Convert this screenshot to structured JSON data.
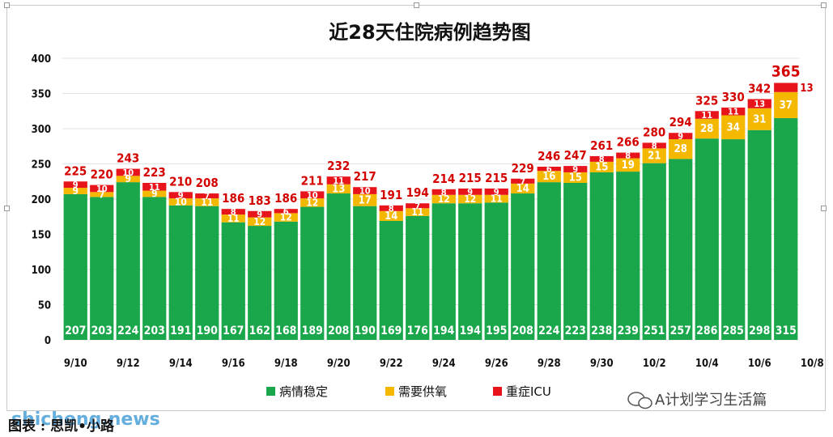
{
  "chart_data": {
    "type": "bar",
    "stacked": true,
    "title": "近28天住院病例趋势图",
    "ylim": [
      0,
      400
    ],
    "yticks": [
      0,
      50,
      100,
      150,
      200,
      250,
      300,
      350,
      400
    ],
    "grid": true,
    "legend_position": "bottom",
    "categories": [
      "9/10",
      "9/11",
      "9/12",
      "9/13",
      "9/14",
      "9/15",
      "9/16",
      "9/17",
      "9/18",
      "9/19",
      "9/20",
      "9/21",
      "9/22",
      "9/23",
      "9/24",
      "9/25",
      "9/26",
      "9/27",
      "9/28",
      "9/29",
      "9/30",
      "10/1",
      "10/2",
      "10/3",
      "10/4",
      "10/5",
      "10/6",
      "10/7"
    ],
    "x_tick_labels": [
      "9/10",
      "9/12",
      "9/14",
      "9/16",
      "9/18",
      "9/20",
      "9/22",
      "9/24",
      "9/26",
      "9/28",
      "9/30",
      "10/2",
      "10/4",
      "10/6",
      "10/8"
    ],
    "series": [
      {
        "name": "病情稳定",
        "color": "#1aa64a",
        "values": [
          207,
          203,
          224,
          203,
          191,
          190,
          167,
          162,
          168,
          189,
          208,
          190,
          169,
          176,
          194,
          194,
          195,
          208,
          224,
          223,
          238,
          239,
          251,
          257,
          286,
          285,
          298,
          315
        ]
      },
      {
        "name": "需要供氧",
        "color": "#f5b800",
        "values": [
          9,
          7,
          9,
          9,
          10,
          11,
          11,
          12,
          12,
          12,
          13,
          17,
          14,
          11,
          12,
          12,
          11,
          14,
          16,
          15,
          15,
          19,
          21,
          28,
          28,
          34,
          31,
          37
        ]
      },
      {
        "name": "重症ICU",
        "color": "#e8141c",
        "values": [
          9,
          10,
          10,
          11,
          9,
          7,
          8,
          9,
          6,
          10,
          11,
          10,
          8,
          7,
          8,
          9,
          9,
          7,
          6,
          9,
          8,
          8,
          8,
          9,
          11,
          11,
          13,
          13
        ]
      }
    ],
    "totals": [
      225,
      220,
      243,
      223,
      210,
      208,
      186,
      183,
      186,
      211,
      232,
      217,
      191,
      194,
      214,
      215,
      215,
      229,
      246,
      247,
      261,
      266,
      280,
      294,
      325,
      330,
      342,
      365
    ]
  },
  "legend": {
    "stable": "病情稳定",
    "oxygen": "需要供氧",
    "icu": "重症ICU"
  },
  "watermark": "A计划学习生活篇",
  "source": "图表 : 思凯•小路",
  "site": "shicheng.news"
}
